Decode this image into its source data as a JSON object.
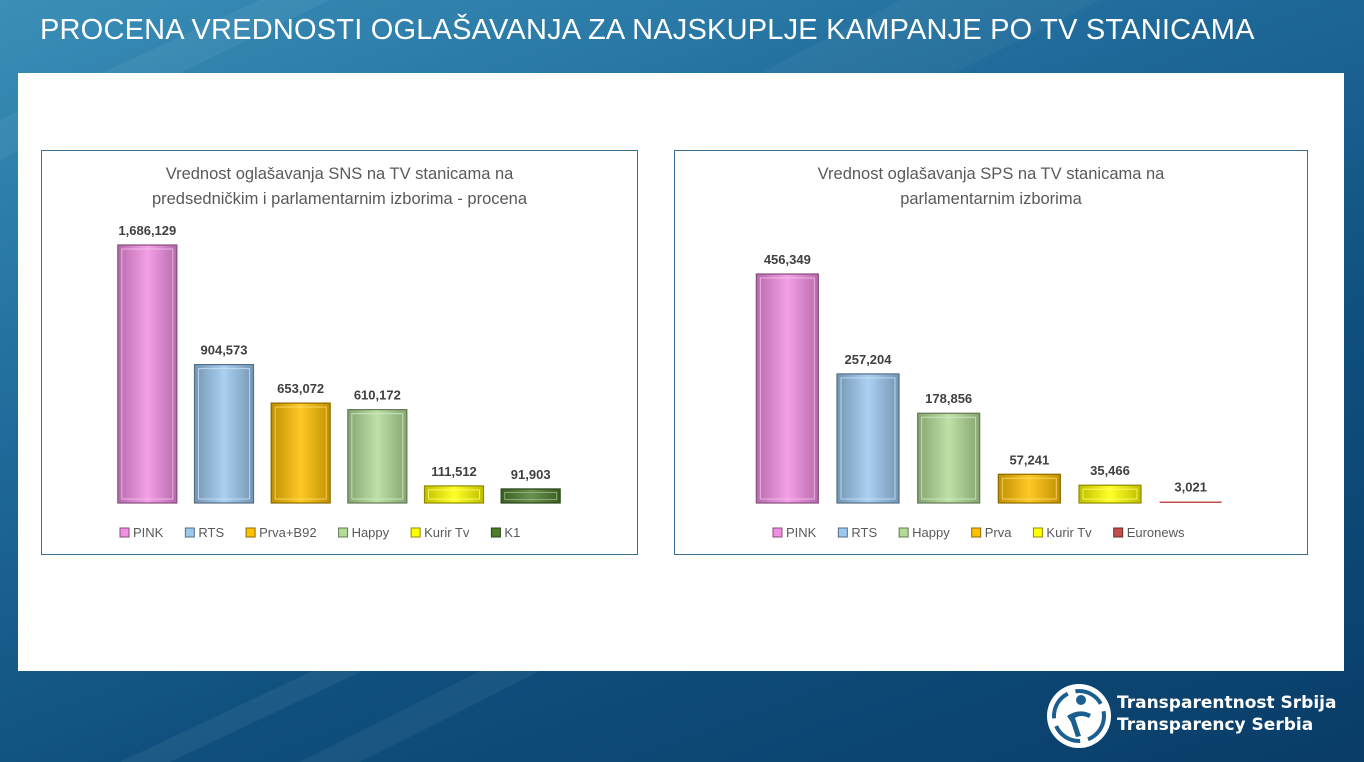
{
  "slide": {
    "title": "PROCENA VREDNOSTI OGLAŠAVANJA ZA NAJSKUPLJE KAMPANJE  PO TV STANICAMA"
  },
  "logo": {
    "line1": "Transparentnost Srbija",
    "line2": "Transparency Serbia"
  },
  "colors": {
    "PINK": "#f28ee3",
    "RTS": "#9cc8f0",
    "Prva+B92": "#ffc000",
    "Happy": "#b3dc98",
    "Kurir Tv": "#ffff00",
    "K1": "#4e7d2e",
    "Prva": "#ffc000",
    "Euronews": "#c0504d"
  },
  "chart_data": [
    {
      "type": "bar",
      "title_lines": [
        "Vrednost oglašavanja SNS na TV stanicama na",
        "predsedničkim i parlamentarnim izborima - procena"
      ],
      "categories": [
        "PINK",
        "RTS",
        "Prva+B92",
        "Happy",
        "Kurir Tv",
        "K1"
      ],
      "values": [
        1686129,
        904573,
        653072,
        610172,
        111512,
        91903
      ],
      "value_labels": [
        "1,686,129",
        "904,573",
        "653,072",
        "610,172",
        "111,512",
        "91,903"
      ],
      "ylim": [
        0,
        1686129
      ],
      "legend": "bottom",
      "grid": false
    },
    {
      "type": "bar",
      "title_lines": [
        "Vrednost oglašavanja SPS na TV stanicama na",
        "parlamentarnim izborima"
      ],
      "categories": [
        "PINK",
        "RTS",
        "Happy",
        "Prva",
        "Kurir Tv",
        "Euronews"
      ],
      "values": [
        456349,
        257204,
        178856,
        57241,
        35466,
        3021
      ],
      "value_labels": [
        "456,349",
        "257,204",
        "178,856",
        "57,241",
        "35,466",
        "3,021"
      ],
      "ylim": [
        0,
        456349
      ],
      "legend": "bottom",
      "grid": false
    }
  ]
}
